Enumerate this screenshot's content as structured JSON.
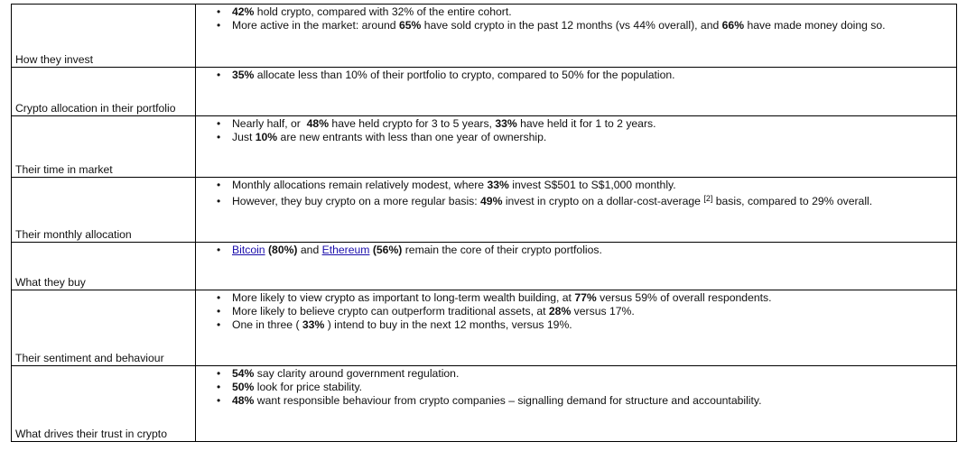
{
  "rows": [
    {
      "label": "How they invest",
      "bullets": [
        {
          "parts": [
            {
              "b": "42%"
            },
            {
              "t": " hold crypto, compared with 32% of the entire cohort."
            }
          ]
        },
        {
          "parts": [
            {
              "t": "More active in the market: around "
            },
            {
              "b": "65%"
            },
            {
              "t": " have sold crypto in the past 12 months (vs 44% overall), and "
            },
            {
              "b": "66%"
            },
            {
              "t": " have made money doing so."
            }
          ]
        }
      ]
    },
    {
      "label": "Crypto allocation in their portfolio",
      "bullets": [
        {
          "parts": [
            {
              "b": "35%"
            },
            {
              "t": " allocate less than 10% of their portfolio to crypto, compared to 50% for the population."
            }
          ]
        }
      ]
    },
    {
      "label": "Their time in market",
      "bullets": [
        {
          "parts": [
            {
              "t": "Nearly half, or  "
            },
            {
              "b": "48%"
            },
            {
              "t": " have held crypto for 3 to 5 years, "
            },
            {
              "b": "33%"
            },
            {
              "t": " have held it for 1 to 2 years."
            }
          ]
        },
        {
          "parts": [
            {
              "t": "Just "
            },
            {
              "b": "10%"
            },
            {
              "t": " are new entrants with less than one year of ownership."
            }
          ]
        }
      ]
    },
    {
      "label": "Their monthly allocation",
      "bullets": [
        {
          "parts": [
            {
              "t": "Monthly allocations remain relatively modest, where "
            },
            {
              "b": "33%"
            },
            {
              "t": " invest S$501 to S$1,000 monthly."
            }
          ]
        },
        {
          "parts": [
            {
              "t": "However, they buy crypto on a more regular basis: "
            },
            {
              "b": "49%"
            },
            {
              "t": " invest in crypto on a dollar-cost-average "
            },
            {
              "sup": "[2]"
            },
            {
              "t": " basis, compared to 29% overall."
            }
          ]
        }
      ]
    },
    {
      "label": "What they buy",
      "bullets": [
        {
          "parts": [
            {
              "link": "Bitcoin"
            },
            {
              "b": " (80%)"
            },
            {
              "t": " and "
            },
            {
              "link": "Ethereum"
            },
            {
              "b": " (56%)"
            },
            {
              "t": " remain the core of their crypto portfolios."
            }
          ]
        }
      ]
    },
    {
      "label": "Their sentiment and behaviour",
      "bullets": [
        {
          "parts": [
            {
              "t": "More likely to view crypto as important to long-term wealth building, at "
            },
            {
              "b": "77%"
            },
            {
              "t": " versus 59% of overall respondents."
            }
          ]
        },
        {
          "parts": [
            {
              "t": "More likely to believe crypto can outperform traditional assets, at "
            },
            {
              "b": "28%"
            },
            {
              "t": " versus 17%."
            }
          ]
        },
        {
          "parts": [
            {
              "t": "One in three ( "
            },
            {
              "b": "33%"
            },
            {
              "t": " ) intend to buy in the next 12 months, versus 19%."
            }
          ]
        }
      ]
    },
    {
      "label": "What drives their trust in crypto",
      "bullets": [
        {
          "parts": [
            {
              "b": "54%"
            },
            {
              "t": " say clarity around government regulation."
            }
          ]
        },
        {
          "parts": [
            {
              "b": "50%"
            },
            {
              "t": " look for price stability."
            }
          ]
        },
        {
          "parts": [
            {
              "b": "48%"
            },
            {
              "t": " want responsible behaviour from crypto companies – signalling demand for structure and accountability."
            }
          ]
        }
      ]
    }
  ]
}
